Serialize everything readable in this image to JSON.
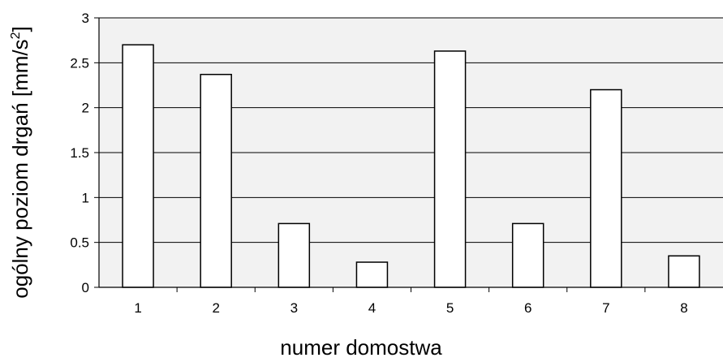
{
  "chart_data": {
    "type": "bar",
    "categories": [
      "1",
      "2",
      "3",
      "4",
      "5",
      "6",
      "7",
      "8"
    ],
    "values": [
      2.7,
      2.37,
      0.71,
      0.28,
      2.63,
      0.71,
      2.2,
      0.35
    ],
    "xlabel": "numer domostwa",
    "ylabel": "ogólny poziom drgań [mm/s",
    "ylabel_superscript": "2",
    "ylabel_suffix": "]",
    "ylim": [
      0,
      3
    ],
    "yticks": [
      "0",
      "0.5",
      "1",
      "1.5",
      "2",
      "2.5",
      "3"
    ],
    "grid": true,
    "colors": {
      "bar_fill": "#ffffff",
      "bar_stroke": "#000000",
      "plot_background": "#f2f2f2",
      "grid": "#000000"
    }
  }
}
